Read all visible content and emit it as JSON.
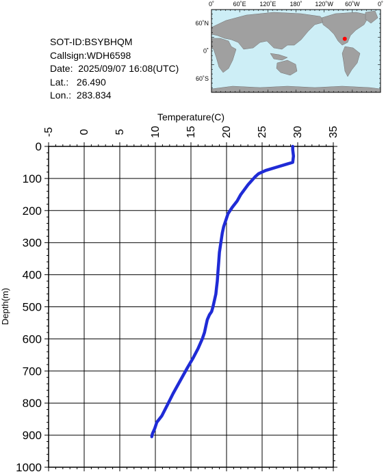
{
  "info": {
    "sot_id": "SOT-ID:BSYBHQM",
    "callsign": "Callsign:WDH6598",
    "date": "Date:  2025/09/07 16:08(UTC)",
    "lat": "Lat.:   26.490",
    "lon": "Lon.:  283.834"
  },
  "map": {
    "top_labels": [
      "0˚",
      "60˚E",
      "120˚E",
      "180˚",
      "120˚W",
      "60˚W",
      "0˚"
    ],
    "left_labels": [
      "60˚N",
      "0˚",
      "60˚S"
    ],
    "ocean_color": "#cdeef6",
    "land_color": "#a0a0a0",
    "marker_color": "#ff0000",
    "marker_lon": 283.834,
    "marker_lat": 26.49
  },
  "chart_data": {
    "type": "line",
    "xlabel": "Temperature(C)",
    "ylabel": "Depth(m)",
    "xlim": [
      -5,
      35
    ],
    "ylim": [
      0,
      1000
    ],
    "y_inverted": true,
    "grid": true,
    "x_ticks": [
      "-5",
      "0",
      "5",
      "10",
      "15",
      "20",
      "25",
      "30",
      "35"
    ],
    "y_ticks": [
      "0",
      "100",
      "200",
      "300",
      "400",
      "500",
      "600",
      "700",
      "800",
      "900",
      "1000"
    ],
    "series_color": "#1f2bd6",
    "series": [
      {
        "temperature": [
          29.3,
          29.3,
          29.4,
          29.3,
          28.5,
          27.0,
          25.5,
          24.5,
          24.0,
          23.0,
          22.0,
          21.5,
          20.8,
          20.2,
          19.9,
          19.6,
          19.4,
          19.2,
          19.0,
          18.9,
          18.8,
          18.7,
          18.6,
          18.5,
          18.3,
          18.1,
          17.9,
          17.6,
          17.3,
          17.1,
          16.9,
          16.6,
          16.0,
          15.3,
          14.5,
          13.5,
          12.5,
          11.6,
          10.9,
          10.2,
          9.9,
          9.6,
          9.5
        ],
        "depth": [
          0,
          10,
          30,
          50,
          55,
          65,
          75,
          85,
          95,
          120,
          150,
          170,
          190,
          210,
          230,
          250,
          270,
          300,
          330,
          360,
          390,
          420,
          440,
          460,
          480,
          500,
          515,
          525,
          540,
          560,
          580,
          600,
          630,
          660,
          690,
          730,
          770,
          810,
          840,
          860,
          880,
          895,
          905
        ]
      }
    ]
  }
}
